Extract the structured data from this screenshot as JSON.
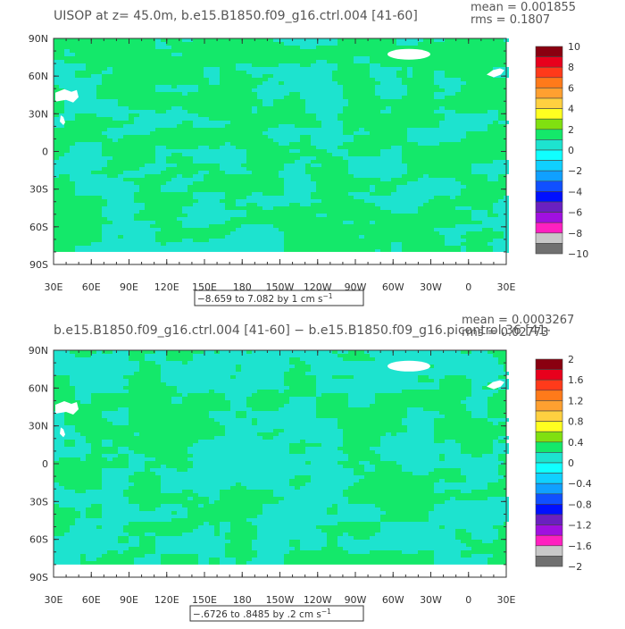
{
  "chart_data": [
    {
      "type": "heatmap",
      "title": "UISOP at z=  45.0m, b.e15.B1850.f09_g16.ctrl.004 [41-60]",
      "mean_label": "mean = 0.001855",
      "rms_label": "rms = 0.1807",
      "x_ticks": [
        "30E",
        "60E",
        "90E",
        "120E",
        "150E",
        "180",
        "150W",
        "120W",
        "90W",
        "60W",
        "30W",
        "0",
        "30E"
      ],
      "y_ticks": [
        "90N",
        "60N",
        "30N",
        "0",
        "30S",
        "60S",
        "90S"
      ],
      "colorbar_labels": [
        "10",
        "8",
        "6",
        "4",
        "2",
        "0",
        "−2",
        "−4",
        "−6",
        "−8",
        "−10"
      ],
      "contour_note": "−8.659 to 7.082 by 1 cm s",
      "contour_note_exp": "−1",
      "dominant_range": [
        -1,
        1
      ],
      "colors": {
        "positive": "#14e86a",
        "negative": "#1de3cf",
        "land": "#ffffff"
      }
    },
    {
      "type": "heatmap",
      "title": "b.e15.B1850.f09_g16.ctrl.004 [41-60] − b.e15.B1850.f09_g16.picontrol.36 [41-",
      "mean_label": "mean = 0.0003267",
      "rms_label": "rms = 0.02773",
      "x_ticks": [
        "30E",
        "60E",
        "90E",
        "120E",
        "150E",
        "180",
        "150W",
        "120W",
        "90W",
        "60W",
        "30W",
        "0",
        "30E"
      ],
      "y_ticks": [
        "90N",
        "60N",
        "30N",
        "0",
        "30S",
        "60S",
        "90S"
      ],
      "colorbar_labels": [
        "2",
        "1.6",
        "1.2",
        "0.8",
        "0.4",
        "0",
        "−0.4",
        "−0.8",
        "−1.2",
        "−1.6",
        "−2"
      ],
      "contour_note": "−.6726 to .8485 by .2 cm s",
      "contour_note_exp": "−1",
      "dominant_range": [
        -0.2,
        0.2
      ],
      "colors": {
        "positive": "#14e86a",
        "negative": "#1de3cf",
        "land": "#ffffff"
      }
    }
  ],
  "colorbar_colors": [
    "#8a0010",
    "#e8001c",
    "#ff3a1a",
    "#ff7a1a",
    "#ffa030",
    "#ffd040",
    "#ffff20",
    "#80e010",
    "#14e86a",
    "#1de3cf",
    "#10ffff",
    "#10d0ff",
    "#10a0ff",
    "#1050ff",
    "#0010ff",
    "#6a20c0",
    "#a010e0",
    "#ff20c0",
    "#c8c8c8",
    "#707070"
  ]
}
